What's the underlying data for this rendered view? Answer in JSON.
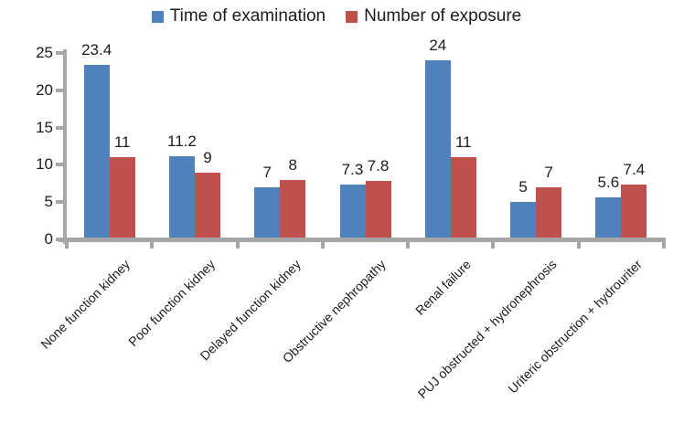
{
  "chart_data": {
    "type": "bar",
    "title": "",
    "xlabel": "",
    "ylabel": "",
    "categories": [
      "None function kidney",
      "Poor function kidney",
      "Delayed function kidney",
      "Obstructive nephropathy",
      "Renal failure",
      "PUJ obstructed + hydronephrosis",
      "Uriteric obstruction + hydrouriter"
    ],
    "series": [
      {
        "name": "Time of examination",
        "color": "#4f81bd",
        "values": [
          23.4,
          11.2,
          7,
          7.3,
          24,
          5,
          5.6
        ]
      },
      {
        "name": "Number of exposure",
        "color": "#c0504d",
        "values": [
          11,
          9,
          8,
          7.8,
          11,
          7,
          7.4
        ]
      }
    ],
    "y_ticks": [
      0,
      5,
      10,
      15,
      20,
      25
    ],
    "ylim": [
      0,
      25
    ],
    "legend_position": "top",
    "grid": false,
    "data_labels": true,
    "axis_color": "#a6a6a6",
    "text_color": "#1c1c1c",
    "background_color": "#ffffff"
  }
}
